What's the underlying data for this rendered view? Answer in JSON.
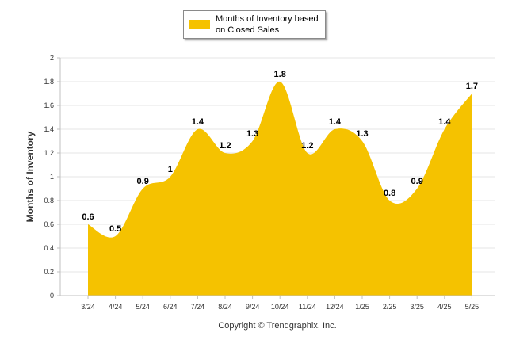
{
  "chart_data": {
    "type": "area",
    "categories": [
      "3/24",
      "4/24",
      "5/24",
      "6/24",
      "7/24",
      "8/24",
      "9/24",
      "10/24",
      "11/24",
      "12/24",
      "1/25",
      "2/25",
      "3/25",
      "4/25",
      "5/25"
    ],
    "series": [
      {
        "name": "Months of Inventory based on Closed Sales",
        "values": [
          0.6,
          0.5,
          0.9,
          1,
          1.4,
          1.2,
          1.3,
          1.8,
          1.2,
          1.4,
          1.3,
          0.8,
          0.9,
          1.4,
          1.7
        ]
      }
    ],
    "data_labels": [
      "0.6",
      "0.5",
      "0.9",
      "1",
      "1.4",
      "1.2",
      "1.3",
      "1.8",
      "1.2",
      "1.4",
      "1.3",
      "0.8",
      "0.9",
      "1.4",
      "1.7"
    ],
    "ylabel": "Months of Inventory",
    "ylim": [
      0,
      2
    ],
    "yticks": [
      "0",
      "0.2",
      "0.4",
      "0.6",
      "0.8",
      "1",
      "1.2",
      "1.4",
      "1.6",
      "1.8",
      "2"
    ],
    "grid": true,
    "legend_position": "top-center",
    "color": "#F5C200",
    "gridline_color": "#e6e6e6"
  },
  "footer": {
    "copyright": "Copyright © Trendgraphix, Inc."
  }
}
